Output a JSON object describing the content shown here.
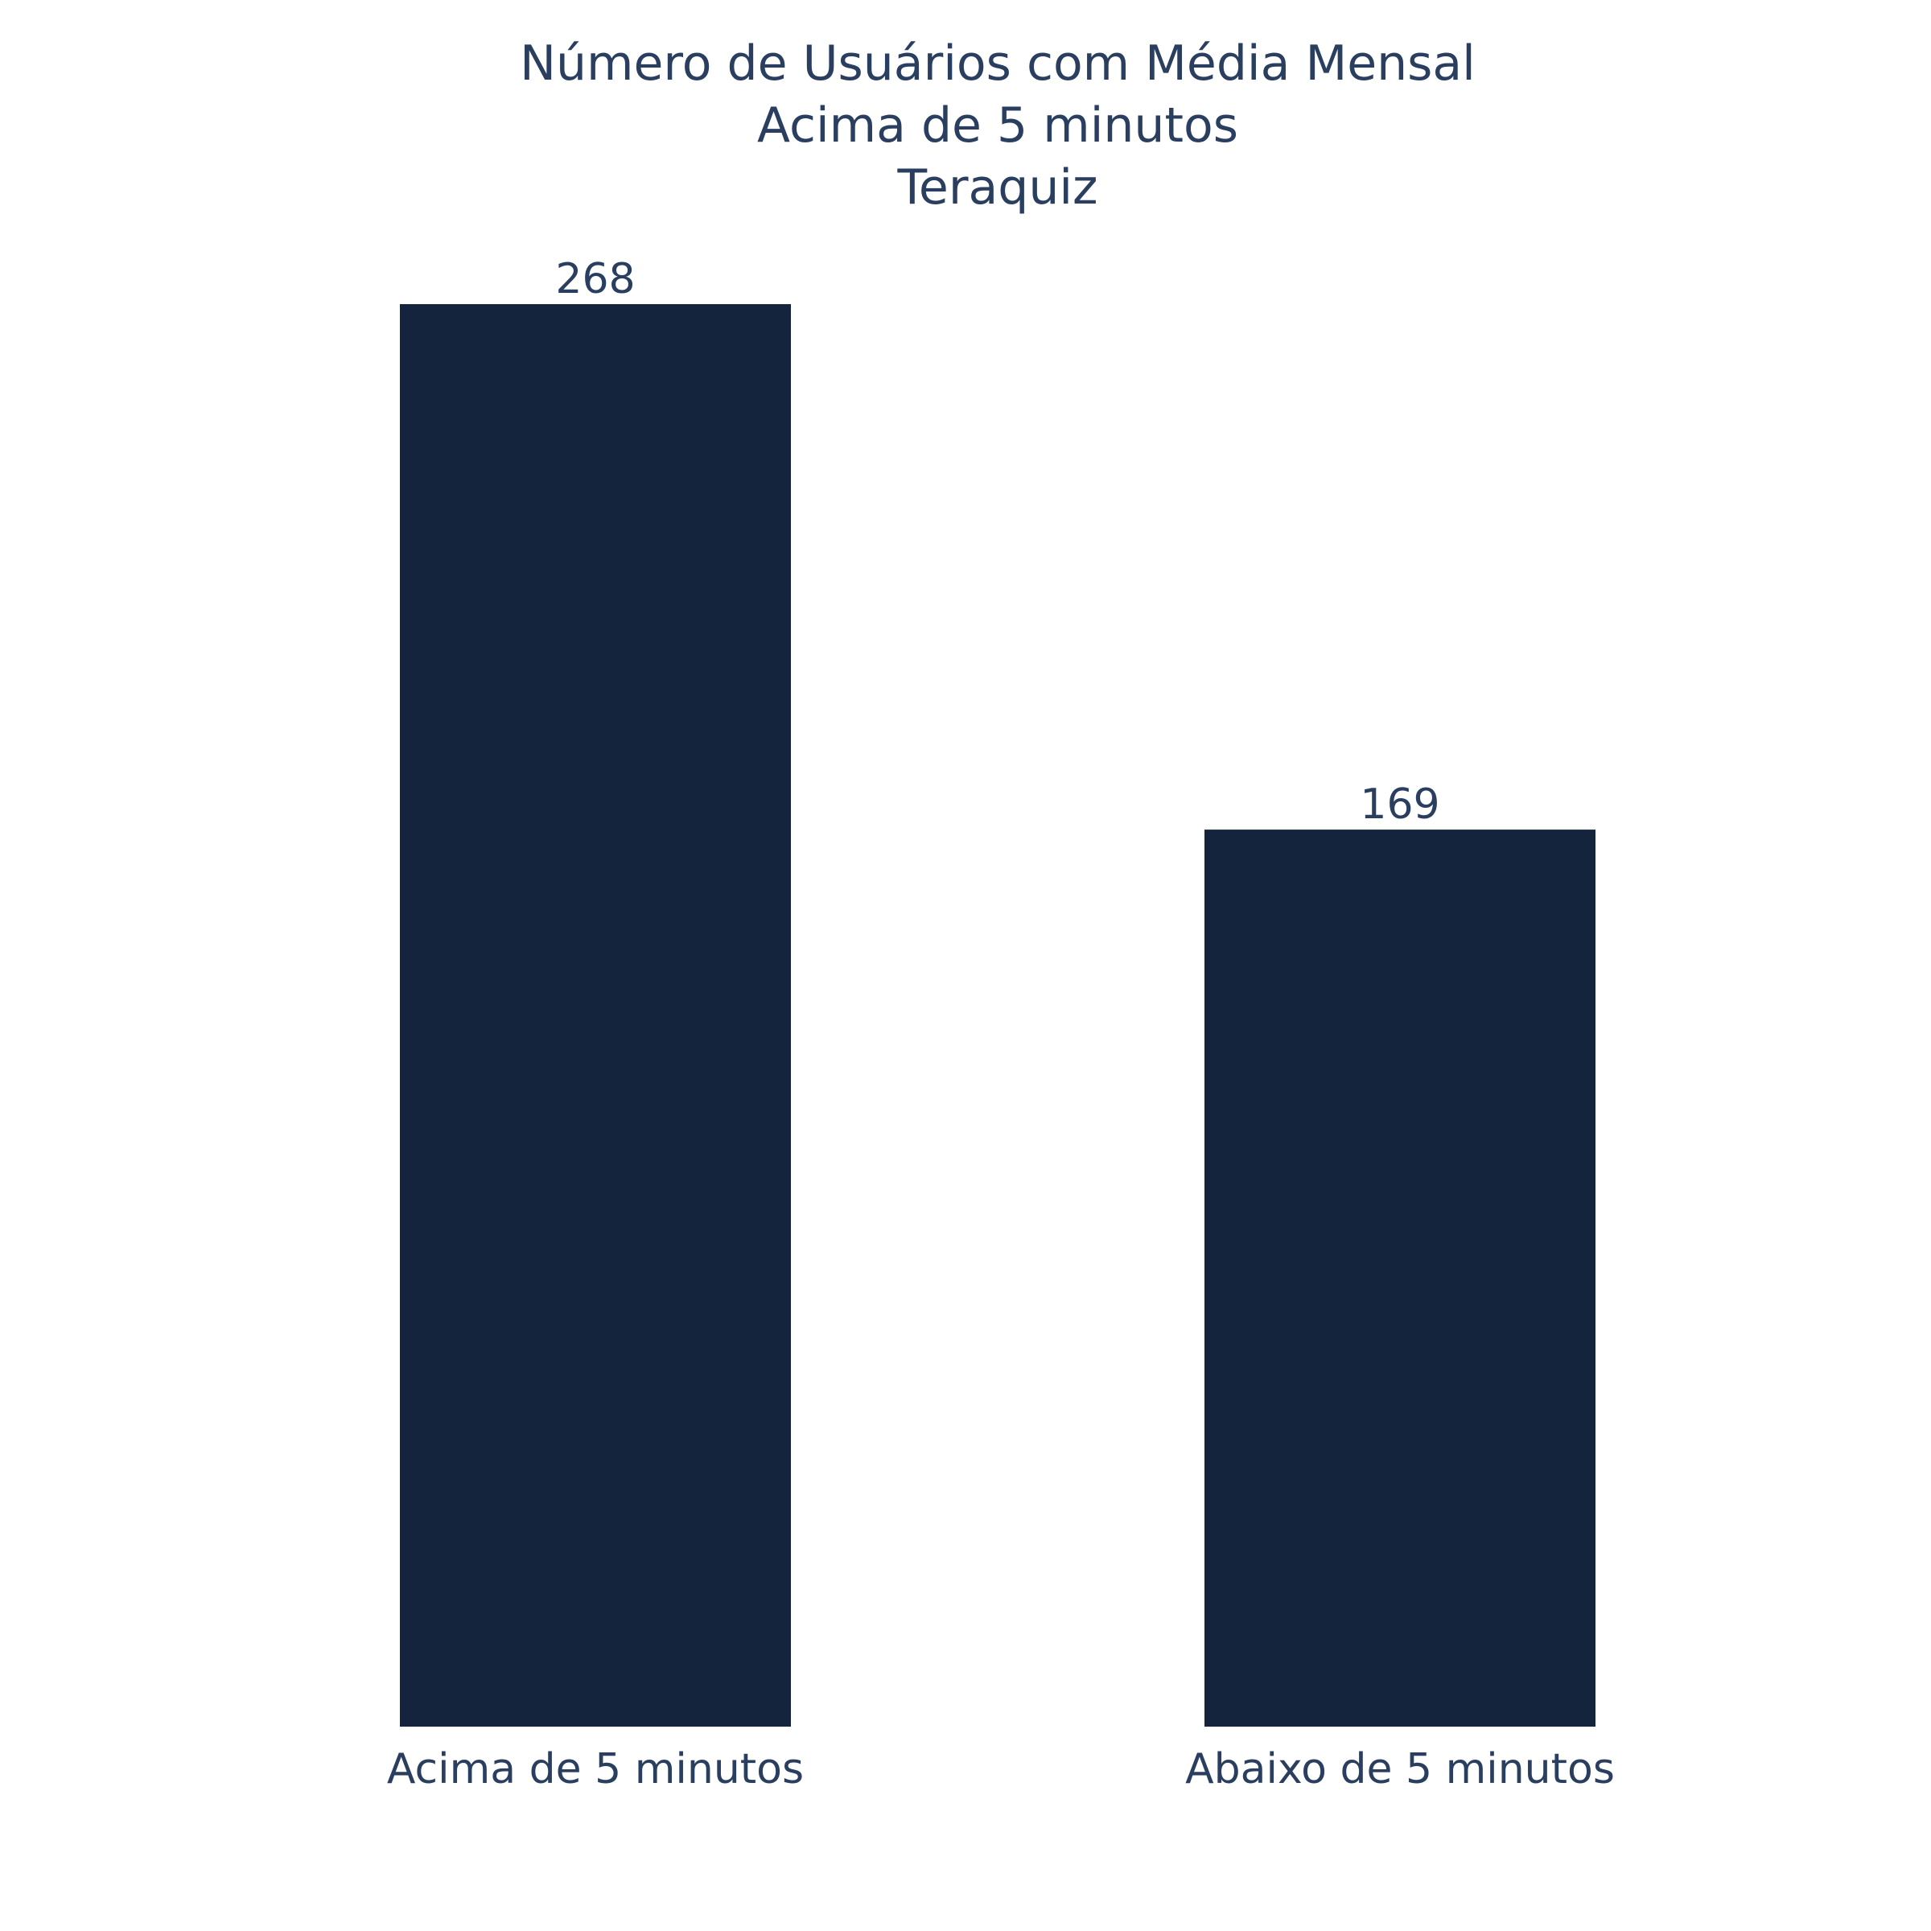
{
  "chart_data": {
    "type": "bar",
    "title_lines": [
      "Número de Usuários com Média Mensal",
      "Acima de 5 minutos",
      "Teraquiz"
    ],
    "categories": [
      "Acima de 5 minutos",
      "Abaixo de 5 minutos"
    ],
    "values": [
      268,
      169
    ],
    "data_labels": [
      "268",
      "169"
    ],
    "xlabel": "",
    "ylabel": "",
    "ylim": [
      0,
      268
    ],
    "bar_color": "#14243d",
    "text_color": "#2a3f5f",
    "grid": false,
    "legend": "none"
  }
}
